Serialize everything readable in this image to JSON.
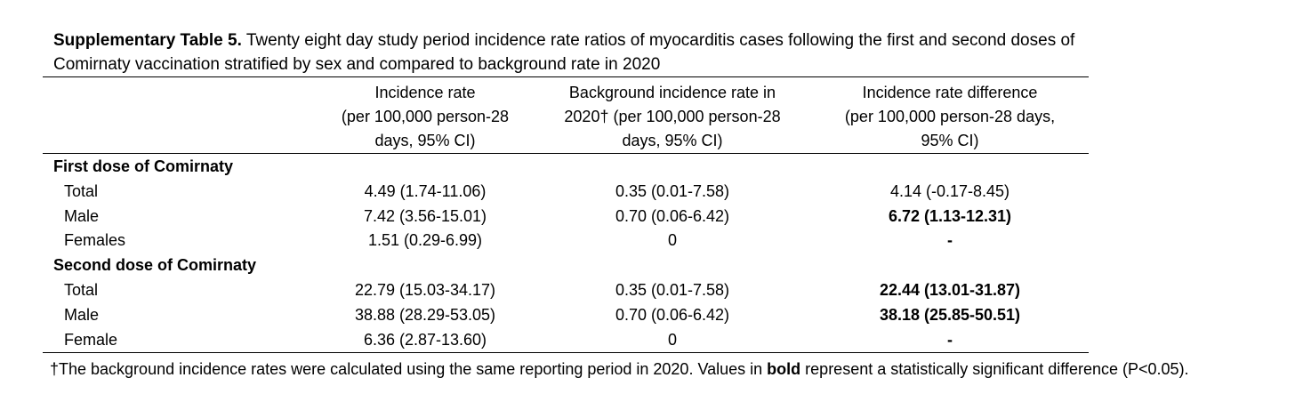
{
  "caption": {
    "label": "Supplementary Table 5.",
    "line1": " Twenty eight day study period incidence rate ratios of myocarditis cases following the first and second doses of",
    "line2": "Comirnaty vaccination stratified by sex and compared to background rate in 2020"
  },
  "headers": {
    "col1": [
      "Incidence rate",
      "(per 100,000 person-28",
      "days, 95% CI)"
    ],
    "col2": [
      "Background incidence rate in",
      "2020† (per 100,000 person-28",
      "days, 95% CI)"
    ],
    "col3": [
      "Incidence rate difference",
      "(per 100,000 person-28 days,",
      "95% CI)"
    ]
  },
  "rows": [
    {
      "label": "First dose of Comirnaty",
      "section": true,
      "c1": "",
      "c2": "",
      "c3": ""
    },
    {
      "label": "Total",
      "c1": "4.49 (1.74-11.06)",
      "c2": "0.35 (0.01-7.58)",
      "c3": "4.14 (-0.17-8.45)"
    },
    {
      "label": "Male",
      "c1": "7.42 (3.56-15.01)",
      "c2": "0.70 (0.06-6.42)",
      "c3": "6.72 (1.13-12.31)",
      "c3_bold": true
    },
    {
      "label": "Females",
      "c1": "1.51 (0.29-6.99)",
      "c2": "0",
      "c3": "-",
      "c3_bold": true
    },
    {
      "label": "Second dose of Comirnaty",
      "section": true,
      "c1": "",
      "c2": "",
      "c3": ""
    },
    {
      "label": "Total",
      "c1": "22.79 (15.03-34.17)",
      "c2": "0.35 (0.01-7.58)",
      "c3": "22.44 (13.01-31.87)",
      "c3_bold": true
    },
    {
      "label": "Male",
      "c1": "38.88 (28.29-53.05)",
      "c2": "0.70 (0.06-6.42)",
      "c3": "38.18 (25.85-50.51)",
      "c3_bold": true
    },
    {
      "label": "Female",
      "c1": "6.36 (2.87-13.60)",
      "c2": "0",
      "c3": "-",
      "c3_bold": true
    }
  ],
  "footnote": {
    "part1": "†The background incidence rates were calculated using the same reporting period in 2020. Values in ",
    "bold": "bold",
    "part2": " represent a statistically significant difference (P<0.05)."
  }
}
